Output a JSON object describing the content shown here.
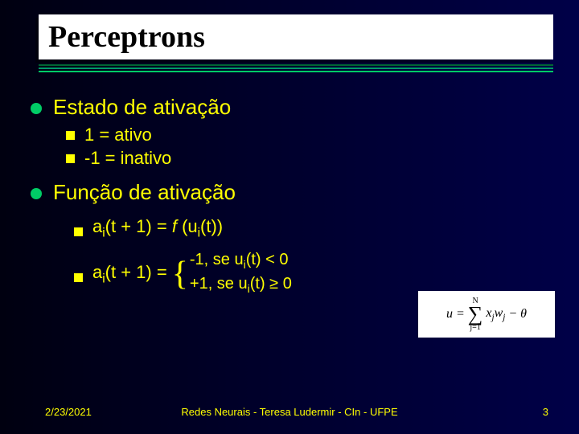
{
  "colors": {
    "bg_left": "#000010",
    "bg_right": "#000048",
    "text": "#ffff00",
    "title_bg": "#ffffff",
    "title_text": "#000000",
    "bullet_round": "#00cc66",
    "bullet_square": "#ffff00",
    "accent1": "#006633",
    "accent2": "#009966",
    "accent3": "#00cc66"
  },
  "title": "Perceptrons",
  "section1": {
    "heading": "Estado de ativação",
    "items": [
      " 1 = ativo",
      "-1 = inativo"
    ]
  },
  "section2": {
    "heading": "Função de ativação",
    "eq1_lhs": "a",
    "eq1_sub": "i",
    "eq1_arg": "(t + 1)  = ",
    "eq1_rhs_f": "f ",
    "eq1_rhs_u": "(u",
    "eq1_rhs_sub": "i",
    "eq1_rhs_end": "(t))",
    "eq2_lhs": "a",
    "eq2_sub": "i",
    "eq2_arg": "(t + 1) =",
    "case1_pre": "-1,  se u",
    "case1_sub": "i",
    "case1_post": "(t) < 0",
    "case2_pre": "+1, se u",
    "case2_sub": "i",
    "case2_post": "(t) ≥ 0"
  },
  "formula": {
    "lhs": "u =",
    "sum_top": "N",
    "sum_bot": "j=1",
    "term_x": "x",
    "term_xsub": "j",
    "term_w": "w",
    "term_wsub": "j",
    "tail": " − θ"
  },
  "footer": {
    "date": "2/23/2021",
    "mid": "Redes Neurais - Teresa Ludermir - CIn - UFPE",
    "page": "3"
  }
}
